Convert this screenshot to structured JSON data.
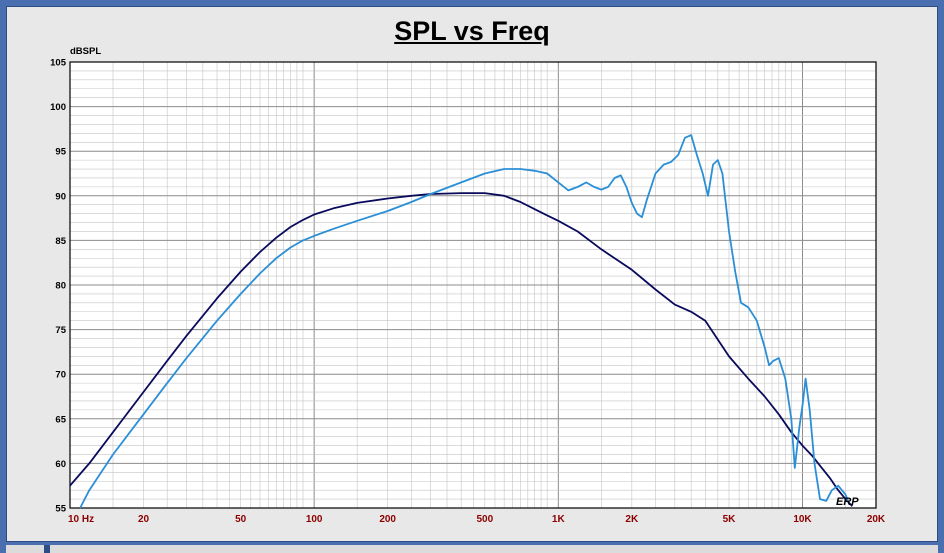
{
  "chart_data": {
    "type": "line",
    "title": "SPL vs Freq",
    "ylabel": "dBSPL",
    "xlabel": "",
    "xscale": "log",
    "xlim": [
      10,
      20000
    ],
    "ylim": [
      55,
      105
    ],
    "yticks": [
      55,
      60,
      65,
      70,
      75,
      80,
      85,
      90,
      95,
      100,
      105
    ],
    "xticks": [
      {
        "value": 10,
        "label": "10  Hz"
      },
      {
        "value": 20,
        "label": "20"
      },
      {
        "value": 50,
        "label": "50"
      },
      {
        "value": 100,
        "label": "100"
      },
      {
        "value": 200,
        "label": "200"
      },
      {
        "value": 500,
        "label": "500"
      },
      {
        "value": 1000,
        "label": "1K"
      },
      {
        "value": 2000,
        "label": "2K"
      },
      {
        "value": 5000,
        "label": "5K"
      },
      {
        "value": 10000,
        "label": "10K"
      },
      {
        "value": 20000,
        "label": "20K"
      }
    ],
    "grid": true,
    "logo_text": "ERP",
    "series": [
      {
        "color": "#0a0a5c",
        "x": [
          10,
          12,
          15,
          20,
          25,
          30,
          40,
          50,
          60,
          70,
          80,
          90,
          100,
          120,
          150,
          200,
          250,
          300,
          400,
          500,
          600,
          700,
          800,
          900,
          1000,
          1200,
          1500,
          2000,
          2500,
          3000,
          3500,
          4000,
          5000,
          6000,
          7000,
          8000,
          9000,
          10000,
          11000,
          12000,
          13000,
          14000,
          15000,
          16000
        ],
        "y": [
          57.5,
          60,
          63.5,
          68,
          71.5,
          74.3,
          78.5,
          81.5,
          83.7,
          85.3,
          86.5,
          87.3,
          87.9,
          88.6,
          89.2,
          89.7,
          90.0,
          90.2,
          90.3,
          90.3,
          90.0,
          89.3,
          88.5,
          87.8,
          87.2,
          86.0,
          84.0,
          81.7,
          79.5,
          77.8,
          77.0,
          76.0,
          72.0,
          69.5,
          67.5,
          65.5,
          63.5,
          62.0,
          60.8,
          59.5,
          58.3,
          57.0,
          56.0,
          55.2
        ]
      },
      {
        "color": "#2a8fd6",
        "x": [
          11,
          12,
          15,
          20,
          25,
          30,
          40,
          50,
          60,
          70,
          80,
          90,
          100,
          120,
          150,
          200,
          250,
          300,
          400,
          500,
          600,
          700,
          800,
          900,
          1000,
          1100,
          1200,
          1300,
          1400,
          1500,
          1600,
          1700,
          1800,
          1900,
          2000,
          2100,
          2200,
          2300,
          2500,
          2700,
          2900,
          3100,
          3300,
          3500,
          3700,
          3900,
          4100,
          4300,
          4500,
          4700,
          5000,
          5300,
          5600,
          6000,
          6500,
          7000,
          7300,
          7600,
          8000,
          8500,
          9000,
          9300,
          9700,
          10000,
          10300,
          10700,
          11200,
          11800,
          12500,
          13200,
          14000,
          15000,
          15500
        ],
        "y": [
          55,
          57,
          61,
          65.5,
          69,
          71.8,
          76,
          79,
          81.3,
          83,
          84.2,
          85,
          85.5,
          86.3,
          87.2,
          88.3,
          89.3,
          90.2,
          91.5,
          92.5,
          93.0,
          93.0,
          92.8,
          92.5,
          91.5,
          90.6,
          91.0,
          91.5,
          91.0,
          90.7,
          91.0,
          92.0,
          92.3,
          91.0,
          89.2,
          88.0,
          87.6,
          89.5,
          92.5,
          93.5,
          93.8,
          94.6,
          96.5,
          96.8,
          94.5,
          92.5,
          90.0,
          93.5,
          94.0,
          92.5,
          86.0,
          81.5,
          78.0,
          77.5,
          76.0,
          73.0,
          71.0,
          71.5,
          71.8,
          69.5,
          65.0,
          59.5,
          64.0,
          66.5,
          69.5,
          66.0,
          60.0,
          56.0,
          55.8,
          57.0,
          57.5,
          56.5,
          55.5
        ]
      }
    ]
  }
}
